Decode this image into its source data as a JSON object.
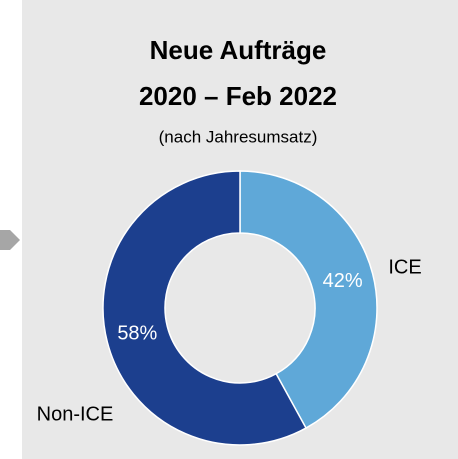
{
  "chart_data": {
    "type": "donut",
    "title": [
      "Neue Aufträge",
      "2020 – Feb 2022"
    ],
    "subtitle": "(nach Jahresumsatz)",
    "categories": [
      "ICE",
      "Non-ICE"
    ],
    "values": [
      42,
      58
    ],
    "value_labels": [
      "42%",
      "58%"
    ],
    "colors": [
      "#5fa8d8",
      "#1c3f8e"
    ]
  }
}
